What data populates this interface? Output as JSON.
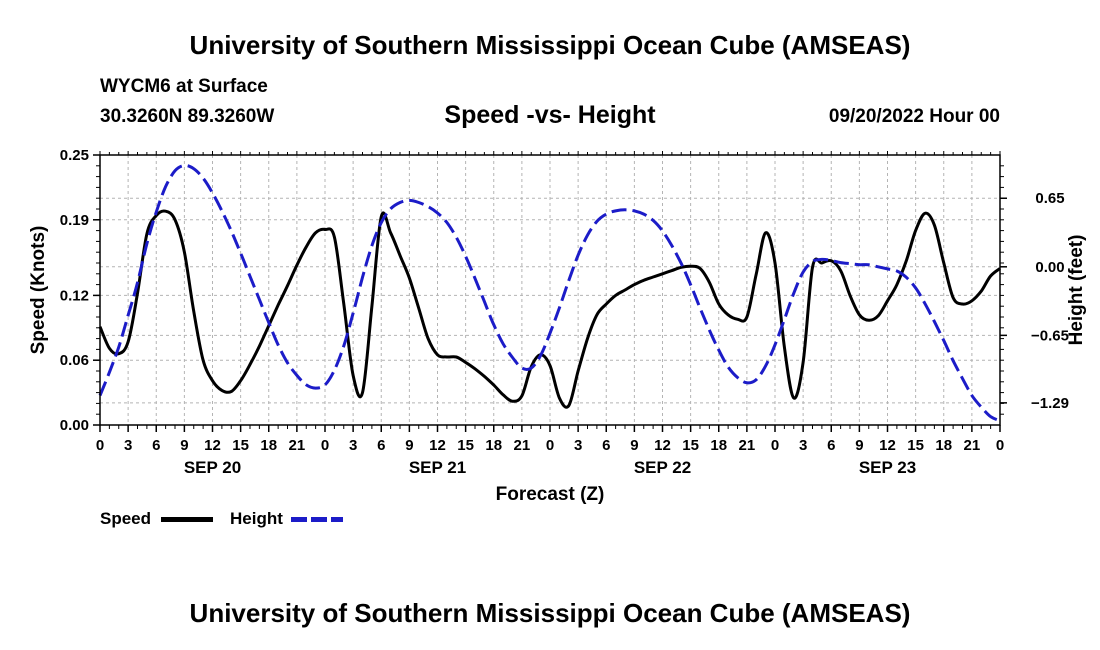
{
  "header": {
    "title": "University of Southern Mississippi Ocean Cube (AMSEAS)",
    "station": "WYCM6 at Surface",
    "coords": "30.3260N  89.3260W",
    "subtitle": "Speed -vs- Height",
    "datetime": "09/20/2022 Hour 00"
  },
  "footer": {
    "title": "University of Southern Mississippi Ocean Cube (AMSEAS)"
  },
  "legend": {
    "speed_label": "Speed",
    "height_label": "Height"
  },
  "chart_data": {
    "type": "line",
    "title": "Speed -vs- Height",
    "xlabel": "Forecast (Z)",
    "ylabel_left": "Speed (Knots)",
    "ylabel_right": "Height (feet)",
    "x_range_hours": [
      0,
      96
    ],
    "x_ticks": [
      0,
      3,
      6,
      9,
      12,
      15,
      18,
      21,
      24,
      27,
      30,
      33,
      36,
      39,
      42,
      45,
      48,
      51,
      54,
      57,
      60,
      63,
      66,
      69,
      72,
      75,
      78,
      81,
      84,
      87,
      90,
      93,
      96
    ],
    "x_tick_labels": [
      "0",
      "3",
      "6",
      "9",
      "12",
      "15",
      "18",
      "21",
      "0",
      "3",
      "6",
      "9",
      "12",
      "15",
      "18",
      "21",
      "0",
      "3",
      "6",
      "9",
      "12",
      "15",
      "18",
      "21",
      "0",
      "3",
      "6",
      "9",
      "12",
      "15",
      "18",
      "21",
      "0"
    ],
    "day_labels": [
      {
        "hour": 12,
        "label": "SEP 20"
      },
      {
        "hour": 36,
        "label": "SEP 21"
      },
      {
        "hour": 60,
        "label": "SEP 22"
      },
      {
        "hour": 84,
        "label": "SEP 23"
      }
    ],
    "ylim_left": [
      0,
      0.25
    ],
    "yticks_left": [
      0,
      0.06,
      0.12,
      0.19,
      0.25
    ],
    "ytick_labels_left": [
      "0.00",
      "0.06",
      "0.12",
      "0.19",
      "0.25"
    ],
    "ylim_right": [
      -1.5,
      1.06
    ],
    "yticks_right": [
      -1.29,
      -0.65,
      0.0,
      0.65
    ],
    "ytick_labels_right": [
      "−1.29",
      "−0.65",
      "0.00",
      "0.65"
    ],
    "grid": true,
    "series": [
      {
        "name": "Speed",
        "axis": "left",
        "color": "#000000",
        "style": "solid",
        "x": [
          0,
          1,
          2,
          3,
          4,
          5,
          6,
          7,
          8,
          9,
          10,
          11,
          12,
          13,
          14,
          15,
          16,
          17,
          18,
          19,
          20,
          21,
          22,
          23,
          24,
          25,
          26,
          27,
          28,
          29,
          30,
          31,
          32,
          33,
          34,
          35,
          36,
          37,
          38,
          39,
          40,
          41,
          42,
          43,
          44,
          45,
          46,
          47,
          48,
          49,
          50,
          51,
          52,
          53,
          54,
          55,
          56,
          57,
          58,
          59,
          60,
          61,
          62,
          63,
          64,
          65,
          66,
          67,
          68,
          69,
          70,
          71,
          72,
          73,
          74,
          75,
          76,
          77,
          78,
          79,
          80,
          81,
          82,
          83,
          84,
          85,
          86,
          87,
          88,
          89,
          90,
          91,
          92,
          93,
          94,
          95,
          96
        ],
        "values": [
          0.091,
          0.071,
          0.066,
          0.077,
          0.122,
          0.177,
          0.194,
          0.198,
          0.19,
          0.16,
          0.105,
          0.06,
          0.041,
          0.032,
          0.031,
          0.041,
          0.056,
          0.073,
          0.092,
          0.111,
          0.129,
          0.148,
          0.165,
          0.178,
          0.181,
          0.174,
          0.112,
          0.046,
          0.03,
          0.11,
          0.193,
          0.178,
          0.157,
          0.136,
          0.108,
          0.08,
          0.065,
          0.063,
          0.063,
          0.058,
          0.052,
          0.045,
          0.037,
          0.028,
          0.022,
          0.027,
          0.054,
          0.065,
          0.055,
          0.025,
          0.018,
          0.05,
          0.08,
          0.102,
          0.112,
          0.12,
          0.125,
          0.13,
          0.134,
          0.137,
          0.14,
          0.143,
          0.146,
          0.147,
          0.145,
          0.132,
          0.112,
          0.102,
          0.098,
          0.1,
          0.14,
          0.178,
          0.15,
          0.072,
          0.025,
          0.058,
          0.146,
          0.15,
          0.152,
          0.143,
          0.12,
          0.102,
          0.097,
          0.101,
          0.115,
          0.13,
          0.152,
          0.18,
          0.196,
          0.185,
          0.15,
          0.118,
          0.112,
          0.115,
          0.124,
          0.138,
          0.145
        ]
      },
      {
        "name": "Height",
        "axis": "right",
        "color": "#1c1cc8",
        "style": "dashed",
        "x": [
          0,
          1,
          2,
          3,
          4,
          5,
          6,
          7,
          8,
          9,
          10,
          11,
          12,
          13,
          14,
          15,
          16,
          17,
          18,
          19,
          20,
          21,
          22,
          23,
          24,
          25,
          26,
          27,
          28,
          29,
          30,
          31,
          32,
          33,
          34,
          35,
          36,
          37,
          38,
          39,
          40,
          41,
          42,
          43,
          44,
          45,
          46,
          47,
          48,
          49,
          50,
          51,
          52,
          53,
          54,
          55,
          56,
          57,
          58,
          59,
          60,
          61,
          62,
          63,
          64,
          65,
          66,
          67,
          68,
          69,
          70,
          71,
          72,
          73,
          74,
          75,
          76,
          77,
          78,
          79,
          80,
          81,
          82,
          83,
          84,
          85,
          86,
          87,
          88,
          89,
          90,
          91,
          92,
          93,
          94,
          95,
          96
        ],
        "values": [
          -1.22,
          -1.0,
          -0.76,
          -0.46,
          -0.15,
          0.22,
          0.52,
          0.76,
          0.91,
          0.96,
          0.93,
          0.84,
          0.7,
          0.53,
          0.34,
          0.13,
          -0.09,
          -0.31,
          -0.53,
          -0.74,
          -0.91,
          -1.03,
          -1.12,
          -1.15,
          -1.12,
          -0.98,
          -0.75,
          -0.44,
          -0.1,
          0.2,
          0.42,
          0.55,
          0.61,
          0.63,
          0.61,
          0.57,
          0.51,
          0.42,
          0.28,
          0.1,
          -0.11,
          -0.33,
          -0.55,
          -0.73,
          -0.86,
          -0.96,
          -0.96,
          -0.84,
          -0.63,
          -0.39,
          -0.13,
          0.11,
          0.3,
          0.43,
          0.5,
          0.53,
          0.54,
          0.53,
          0.5,
          0.44,
          0.34,
          0.2,
          0.03,
          -0.17,
          -0.39,
          -0.6,
          -0.79,
          -0.95,
          -1.05,
          -1.1,
          -1.07,
          -0.94,
          -0.74,
          -0.5,
          -0.25,
          -0.05,
          0.05,
          0.07,
          0.06,
          0.04,
          0.03,
          0.02,
          0.02,
          0.0,
          -0.02,
          -0.04,
          -0.1,
          -0.2,
          -0.35,
          -0.52,
          -0.7,
          -0.89,
          -1.06,
          -1.22,
          -1.33,
          -1.42,
          -1.46
        ]
      }
    ]
  }
}
